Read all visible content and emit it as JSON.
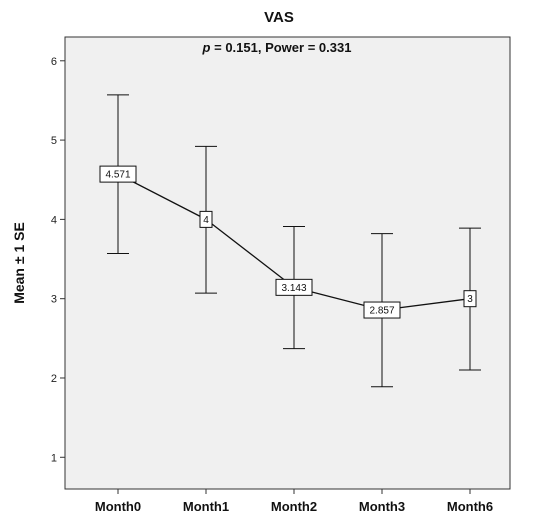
{
  "chart_data": {
    "type": "line",
    "title": "VAS",
    "annotation": {
      "p_symbol": "p",
      "text": " = 0.151, Power = 0.331"
    },
    "xlabel": "",
    "ylabel": "Mean ± 1 SE",
    "categories": [
      "Month0",
      "Month1",
      "Month2",
      "Month3",
      "Month6"
    ],
    "series": [
      {
        "values": [
          4.571,
          4,
          3.143,
          2.857,
          3
        ],
        "labels": [
          "4.571",
          "4",
          "3.143",
          "2.857",
          "3"
        ],
        "lower": [
          3.57,
          3.07,
          2.37,
          1.89,
          2.1
        ],
        "upper": [
          5.57,
          4.92,
          3.91,
          3.82,
          3.89
        ]
      }
    ],
    "ylim": [
      0.6,
      6.3
    ],
    "yticks": [
      "1",
      "2",
      "3",
      "4",
      "5",
      "6"
    ],
    "grid": false,
    "legend": "none",
    "colors": {
      "plot_bg": "#f0f0f0",
      "line": "#111111",
      "marker_fill": "#ffffff"
    }
  }
}
